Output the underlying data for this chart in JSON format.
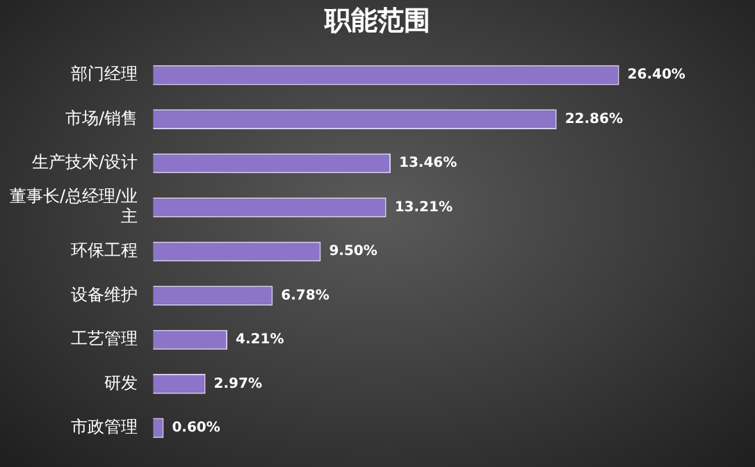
{
  "chart_data": {
    "type": "bar",
    "orientation": "horizontal",
    "title": "职能范围",
    "categories": [
      "部门经理",
      "市场/销售",
      "生产技术/设计",
      "董事长/总经理/业主",
      "环保工程",
      "设备维护",
      "工艺管理",
      "研发",
      "市政管理"
    ],
    "values": [
      26.4,
      22.86,
      13.46,
      13.21,
      9.5,
      6.78,
      4.21,
      2.97,
      0.6
    ],
    "value_labels": [
      "26.40%",
      "22.86%",
      "13.46%",
      "13.21%",
      "9.50%",
      "6.78%",
      "4.21%",
      "2.97%",
      "0.60%"
    ],
    "color": "#8c74c8",
    "legend": false
  }
}
